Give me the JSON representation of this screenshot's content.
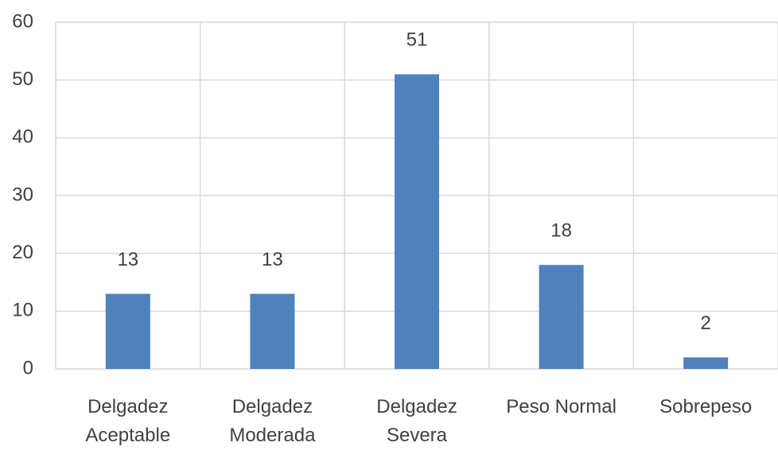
{
  "chart_data": {
    "type": "bar",
    "categories": [
      "Delgadez Aceptable",
      "Delgadez Moderada",
      "Delgadez Severa",
      "Peso Normal",
      "Sobrepeso"
    ],
    "values": [
      13,
      13,
      51,
      18,
      2
    ],
    "color": "#4f81bd",
    "ylim": [
      0,
      60
    ],
    "yticks": [
      0,
      10,
      20,
      30,
      40,
      50,
      60
    ],
    "grid": true
  }
}
